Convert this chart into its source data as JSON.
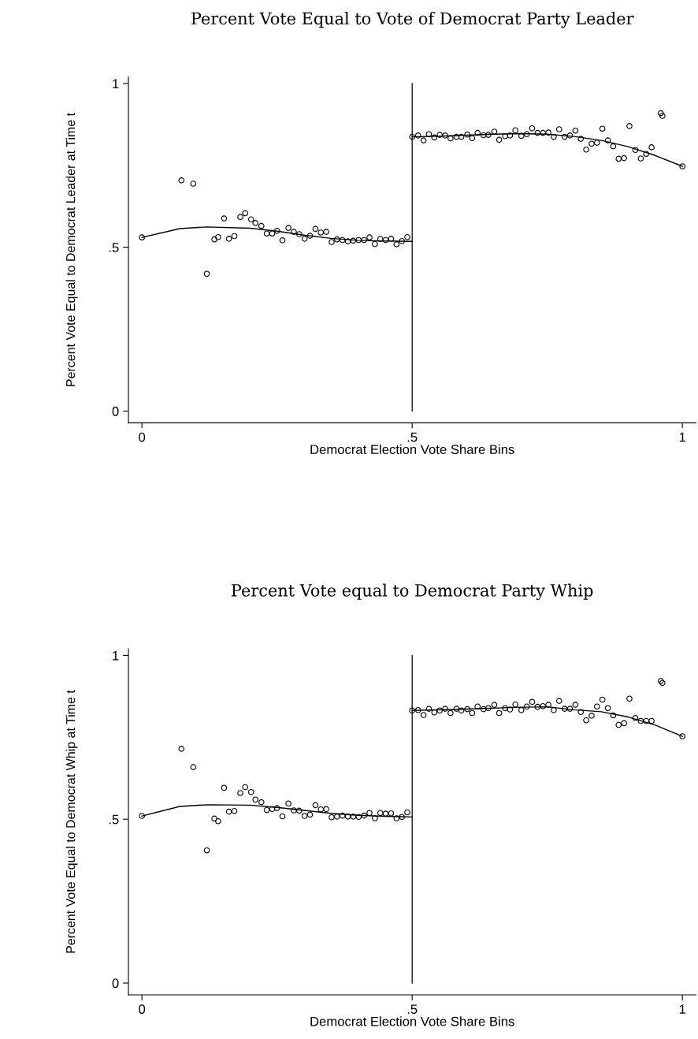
{
  "chart_data": [
    {
      "type": "scatter",
      "title": "Percent Vote Equal to Vote of Democrat Party Leader",
      "xlabel": "Democrat Election Vote Share Bins",
      "ylabel": "Percent Vote Equal to Democrat Leader at Time t",
      "xlim": [
        -0.025,
        1.025
      ],
      "ylim": [
        -0.036,
        1.02
      ],
      "xticks": [
        0,
        {
          "value": 0.5,
          "label": ".5"
        },
        1
      ],
      "yticks": [
        0,
        {
          "value": 0.5,
          "label": ".5"
        },
        1
      ],
      "grid": false,
      "legend": false,
      "ref_lines": [
        {
          "axis": "x",
          "value": 0.5,
          "color": "#000000"
        }
      ],
      "series": [
        {
          "color": "#000000",
          "marker": "circle",
          "x": [
            0,
            0.073,
            0.095,
            0.12,
            0.134,
            0.141,
            0.152,
            0.161,
            0.171,
            0.182,
            0.191,
            0.202,
            0.21,
            0.221,
            0.231,
            0.241,
            0.25,
            0.26,
            0.271,
            0.281,
            0.291,
            0.301,
            0.311,
            0.321,
            0.331,
            0.341,
            0.351,
            0.361,
            0.371,
            0.381,
            0.391,
            0.401,
            0.411,
            0.421,
            0.431,
            0.441,
            0.451,
            0.461,
            0.471,
            0.481,
            0.491,
            0.5,
            0.511,
            0.521,
            0.531,
            0.541,
            0.551,
            0.561,
            0.571,
            0.582,
            0.591,
            0.602,
            0.611,
            0.621,
            0.632,
            0.641,
            0.652,
            0.661,
            0.672,
            0.681,
            0.691,
            0.702,
            0.712,
            0.722,
            0.732,
            0.742,
            0.752,
            0.762,
            0.772,
            0.782,
            0.792,
            0.802,
            0.812,
            0.822,
            0.832,
            0.842,
            0.852,
            0.862,
            0.872,
            0.882,
            0.892,
            0.902,
            0.913,
            0.923,
            0.933,
            0.943,
            0.96,
            0.963,
            1.0
          ],
          "values": [
            0.53,
            0.704,
            0.694,
            0.419,
            0.524,
            0.531,
            0.588,
            0.526,
            0.534,
            0.592,
            0.604,
            0.585,
            0.574,
            0.565,
            0.542,
            0.542,
            0.55,
            0.521,
            0.559,
            0.547,
            0.54,
            0.526,
            0.535,
            0.556,
            0.545,
            0.547,
            0.516,
            0.524,
            0.522,
            0.518,
            0.52,
            0.522,
            0.522,
            0.53,
            0.51,
            0.525,
            0.522,
            0.526,
            0.509,
            0.519,
            0.531,
            0.837,
            0.841,
            0.826,
            0.845,
            0.835,
            0.843,
            0.841,
            0.832,
            0.837,
            0.837,
            0.844,
            0.833,
            0.849,
            0.842,
            0.843,
            0.853,
            0.828,
            0.839,
            0.841,
            0.857,
            0.84,
            0.845,
            0.863,
            0.849,
            0.849,
            0.85,
            0.837,
            0.86,
            0.837,
            0.841,
            0.856,
            0.831,
            0.798,
            0.816,
            0.819,
            0.862,
            0.826,
            0.808,
            0.77,
            0.772,
            0.87,
            0.797,
            0.771,
            0.785,
            0.805,
            0.909,
            0.901,
            0.747
          ]
        },
        {
          "type": "line",
          "color": "#000000",
          "marker": "none",
          "line_style": "solid",
          "x": [
            0,
            0.07,
            0.12,
            0.2,
            0.25,
            0.3,
            0.35,
            0.4,
            0.45,
            0.5
          ],
          "values": [
            0.53,
            0.557,
            0.562,
            0.558,
            0.549,
            0.537,
            0.527,
            0.521,
            0.519,
            0.518
          ]
        },
        {
          "type": "line",
          "color": "#000000",
          "marker": "none",
          "line_style": "solid",
          "x": [
            0.5,
            0.55,
            0.6,
            0.65,
            0.7,
            0.75,
            0.8,
            0.85,
            0.9,
            0.95,
            1.0
          ],
          "values": [
            0.837,
            0.839,
            0.842,
            0.845,
            0.847,
            0.845,
            0.838,
            0.826,
            0.807,
            0.78,
            0.747
          ]
        }
      ]
    },
    {
      "type": "scatter",
      "title": "Percent Vote equal to Democrat Party Whip",
      "xlabel": "Democrat Election Vote Share Bins",
      "ylabel": "Percent Vote Equal to Democrat Whip at Time t",
      "xlim": [
        -0.025,
        1.025
      ],
      "ylim": [
        -0.036,
        1.02
      ],
      "xticks": [
        0,
        {
          "value": 0.5,
          "label": ".5"
        },
        1
      ],
      "yticks": [
        0,
        {
          "value": 0.5,
          "label": ".5"
        },
        1
      ],
      "grid": false,
      "legend": false,
      "ref_lines": [
        {
          "axis": "x",
          "value": 0.5,
          "color": "#000000"
        }
      ],
      "series": [
        {
          "color": "#000000",
          "marker": "circle",
          "x": [
            0,
            0.073,
            0.095,
            0.12,
            0.134,
            0.141,
            0.152,
            0.161,
            0.171,
            0.182,
            0.191,
            0.202,
            0.21,
            0.221,
            0.231,
            0.241,
            0.25,
            0.26,
            0.271,
            0.281,
            0.291,
            0.301,
            0.311,
            0.321,
            0.331,
            0.341,
            0.351,
            0.361,
            0.371,
            0.381,
            0.391,
            0.401,
            0.411,
            0.421,
            0.431,
            0.441,
            0.451,
            0.461,
            0.471,
            0.481,
            0.491,
            0.5,
            0.511,
            0.521,
            0.531,
            0.541,
            0.551,
            0.561,
            0.571,
            0.582,
            0.591,
            0.602,
            0.611,
            0.621,
            0.632,
            0.641,
            0.652,
            0.661,
            0.672,
            0.681,
            0.691,
            0.702,
            0.712,
            0.722,
            0.732,
            0.742,
            0.752,
            0.762,
            0.772,
            0.782,
            0.792,
            0.802,
            0.812,
            0.822,
            0.832,
            0.842,
            0.852,
            0.862,
            0.872,
            0.882,
            0.892,
            0.902,
            0.913,
            0.923,
            0.933,
            0.943,
            0.96,
            0.963,
            1.0
          ],
          "values": [
            0.51,
            0.715,
            0.659,
            0.405,
            0.502,
            0.494,
            0.596,
            0.523,
            0.525,
            0.58,
            0.598,
            0.583,
            0.56,
            0.552,
            0.528,
            0.531,
            0.534,
            0.509,
            0.548,
            0.527,
            0.526,
            0.51,
            0.514,
            0.543,
            0.53,
            0.531,
            0.506,
            0.508,
            0.511,
            0.508,
            0.508,
            0.507,
            0.511,
            0.519,
            0.503,
            0.519,
            0.517,
            0.518,
            0.503,
            0.507,
            0.521,
            0.832,
            0.833,
            0.818,
            0.837,
            0.826,
            0.832,
            0.837,
            0.824,
            0.837,
            0.832,
            0.836,
            0.824,
            0.844,
            0.836,
            0.839,
            0.849,
            0.824,
            0.839,
            0.835,
            0.85,
            0.833,
            0.844,
            0.858,
            0.843,
            0.845,
            0.849,
            0.833,
            0.861,
            0.837,
            0.837,
            0.849,
            0.827,
            0.802,
            0.816,
            0.844,
            0.865,
            0.839,
            0.817,
            0.788,
            0.793,
            0.868,
            0.809,
            0.8,
            0.8,
            0.8,
            0.922,
            0.916,
            0.753
          ]
        },
        {
          "type": "line",
          "color": "#000000",
          "marker": "none",
          "line_style": "solid",
          "x": [
            0,
            0.07,
            0.12,
            0.2,
            0.25,
            0.3,
            0.35,
            0.4,
            0.45,
            0.5
          ],
          "values": [
            0.51,
            0.539,
            0.544,
            0.543,
            0.536,
            0.527,
            0.518,
            0.512,
            0.509,
            0.507
          ]
        },
        {
          "type": "line",
          "color": "#000000",
          "marker": "none",
          "line_style": "solid",
          "x": [
            0.5,
            0.6,
            0.7,
            0.75,
            0.8,
            0.85,
            0.9,
            0.95,
            1.0
          ],
          "values": [
            0.832,
            0.836,
            0.842,
            0.843,
            0.834,
            0.828,
            0.812,
            0.787,
            0.753
          ]
        }
      ]
    }
  ]
}
